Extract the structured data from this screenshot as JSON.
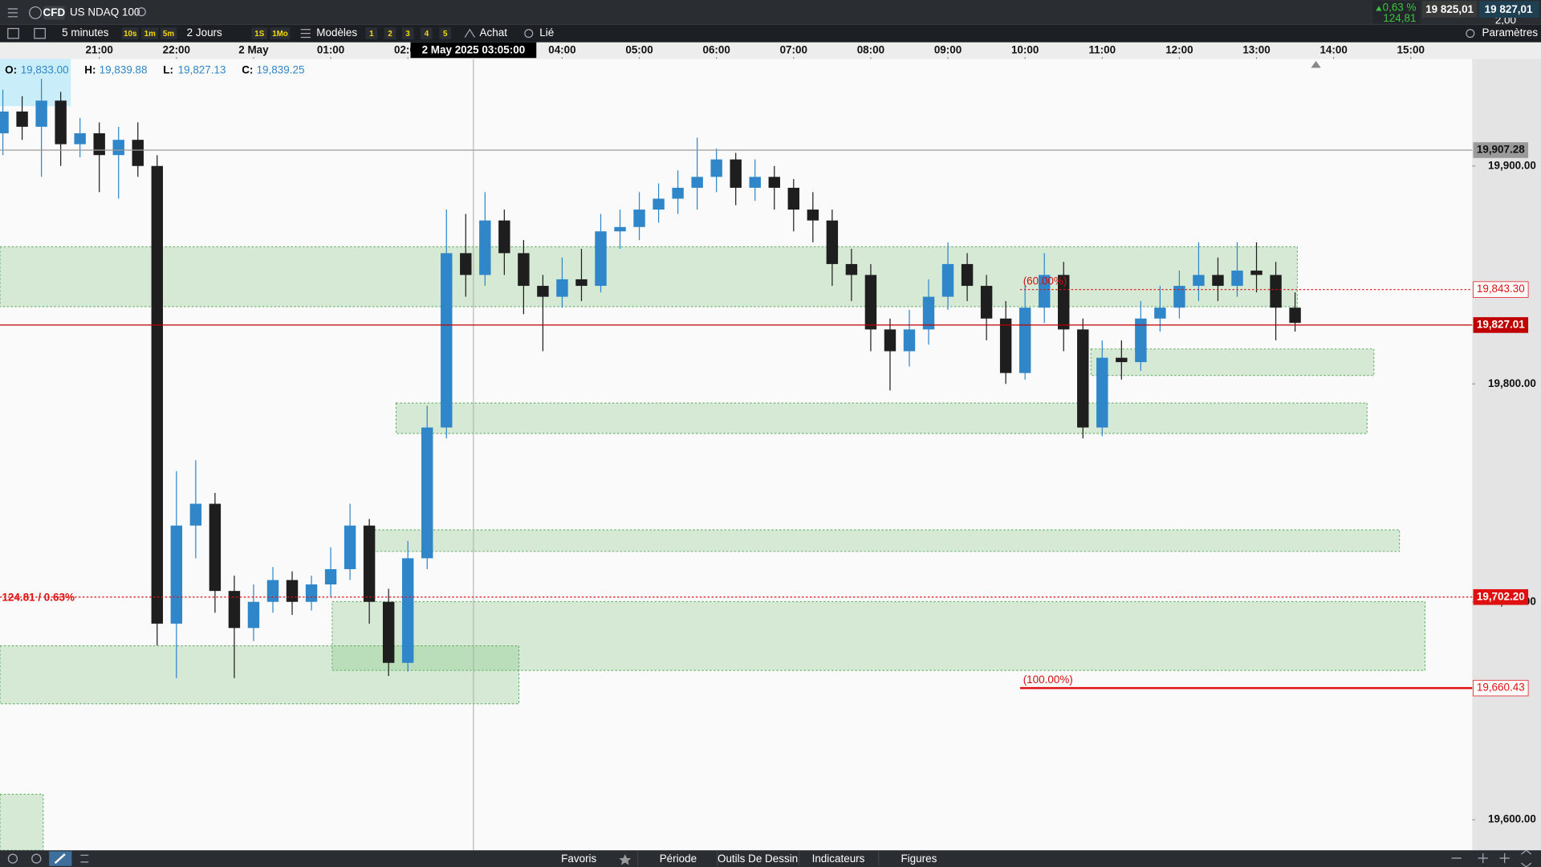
{
  "header": {
    "badge": "CFD",
    "instrument": "US NDAQ 100",
    "change_pct": "0,63 %",
    "change_abs": "124,81",
    "bid": "19 825,01",
    "spread": "2,00",
    "ask": "19 827,01"
  },
  "toolbar": {
    "period": "5 minutes",
    "quick_periods": [
      "10s",
      "1m",
      "5m"
    ],
    "range": "2 Jours",
    "quick_ranges": [
      "1S",
      "1Mo"
    ],
    "templates": "Modèles",
    "slots": [
      "1",
      "2",
      "3",
      "4",
      "5"
    ],
    "buy": "Achat",
    "link": "Lié",
    "settings": "Paramètres"
  },
  "readout": [
    {
      "key": "O:",
      "value": "19,833.00"
    },
    {
      "key": "H:",
      "value": "19,839.88"
    },
    {
      "key": "L:",
      "value": "19,827.13"
    },
    {
      "key": "C:",
      "value": "19,839.25"
    }
  ],
  "chart": {
    "type": "candlestick",
    "up_color": "#2f86c9",
    "down_color": "#1e1e1e",
    "xlim": [
      -1.287,
      17.796
    ],
    "ylim": [
      19586.0,
      19949.1
    ],
    "xticks": [
      {
        "value": 0,
        "label": "21:00"
      },
      {
        "value": 1,
        "label": "22:00"
      },
      {
        "value": 2,
        "label": "2 May"
      },
      {
        "value": 3,
        "label": "01:00"
      },
      {
        "value": 4,
        "label": "02:00"
      },
      {
        "value": 6,
        "label": "04:00"
      },
      {
        "value": 7,
        "label": "05:00"
      },
      {
        "value": 8,
        "label": "06:00"
      },
      {
        "value": 9,
        "label": "07:00"
      },
      {
        "value": 10,
        "label": "08:00"
      },
      {
        "value": 11,
        "label": "09:00"
      },
      {
        "value": 12,
        "label": "10:00"
      },
      {
        "value": 13,
        "label": "11:00"
      },
      {
        "value": 14,
        "label": "12:00"
      },
      {
        "value": 15,
        "label": "13:00"
      },
      {
        "value": 16,
        "label": "14:00"
      },
      {
        "value": 17,
        "label": "15:00"
      }
    ],
    "yticks": [
      {
        "value": 19600,
        "label": "19,600.00"
      },
      {
        "value": 19700,
        "label": "19,700.00"
      },
      {
        "value": 19800,
        "label": "19,800.00"
      },
      {
        "value": 19900,
        "label": "19,900.00"
      }
    ],
    "crosshair": {
      "value": 4.85,
      "label": "2 May 2025 03:05:00"
    },
    "levels": [
      {
        "value": 19907.28,
        "label": "19,907.28",
        "color": "#9a9a9a",
        "filled": true,
        "dash": false,
        "span": "full"
      },
      {
        "value": 19843.3,
        "label": "19,843.30",
        "color": "#e01010",
        "filled": false,
        "dash": true,
        "span": "fib",
        "note": "(60.00%)"
      },
      {
        "value": 19827.01,
        "label": "19,827.01",
        "color": "#c00000",
        "filled": true,
        "dash": false,
        "span": "full"
      },
      {
        "value": 19702.2,
        "label": "19,702.20",
        "color": "#e01010",
        "filled": true,
        "dash": true,
        "span": "full",
        "note": "124.81 / 0.63%"
      },
      {
        "value": 19660.43,
        "label": "19,660.43",
        "color": "#e01010",
        "filled": false,
        "dash": false,
        "span": "fib",
        "note": "(100.00%)"
      }
    ],
    "x": [
      -1.25,
      -1,
      -0.75,
      -0.5,
      -0.25,
      0,
      0.25,
      0.5,
      0.75,
      1,
      1.25,
      1.5,
      1.75,
      2,
      2.25,
      2.5,
      2.75,
      3,
      3.25,
      3.5,
      3.75,
      4,
      4.25,
      4.5,
      4.75,
      5,
      5.25,
      5.5,
      5.75,
      6,
      6.25,
      6.5,
      6.75,
      7,
      7.25,
      7.5,
      7.75,
      8,
      8.25,
      8.5,
      8.75,
      9,
      9.25,
      9.5,
      9.75,
      10,
      10.25,
      10.5,
      10.75,
      11,
      11.25,
      11.5,
      11.75,
      12,
      12.25,
      12.5,
      12.75,
      13,
      13.25,
      13.5,
      13.75,
      14,
      14.25,
      14.5,
      14.75,
      15,
      15.25,
      15.5
    ],
    "open": [
      19915,
      19925,
      19918,
      19930,
      19910,
      19915,
      19905,
      19912,
      19900,
      19690,
      19735,
      19745,
      19705,
      19688,
      19700,
      19710,
      19700,
      19708,
      19715,
      19735,
      19700,
      19672,
      19720,
      19780,
      19860,
      19850,
      19875,
      19860,
      19845,
      19840,
      19848,
      19845,
      19870,
      19872,
      19880,
      19885,
      19890,
      19895,
      19903,
      19890,
      19895,
      19890,
      19880,
      19875,
      19855,
      19850,
      19825,
      19815,
      19825,
      19840,
      19855,
      19845,
      19830,
      19805,
      19835,
      19850,
      19825,
      19780,
      19812,
      19810,
      19830,
      19835,
      19845,
      19850,
      19845,
      19852,
      19850,
      19835
    ],
    "high": [
      19935,
      19932,
      19940,
      19934,
      19922,
      19920,
      19918,
      19920,
      19905,
      19760,
      19765,
      19750,
      19712,
      19708,
      19716,
      19714,
      19712,
      19725,
      19745,
      19738,
      19706,
      19728,
      19790,
      19880,
      19878,
      19888,
      19880,
      19866,
      19850,
      19858,
      19862,
      19878,
      19880,
      19888,
      19892,
      19898,
      19913,
      19908,
      19906,
      19903,
      19900,
      19894,
      19888,
      19880,
      19862,
      19855,
      19830,
      19834,
      19848,
      19865,
      19860,
      19850,
      19838,
      19845,
      19860,
      19856,
      19830,
      19820,
      19820,
      19838,
      19845,
      19852,
      19865,
      19858,
      19865,
      19865,
      19856,
      19842
    ],
    "low": [
      19905,
      19912,
      19895,
      19900,
      19904,
      19888,
      19885,
      19895,
      19680,
      19665,
      19720,
      19695,
      19665,
      19682,
      19695,
      19694,
      19696,
      19702,
      19710,
      19690,
      19666,
      19668,
      19715,
      19775,
      19840,
      19845,
      19850,
      19832,
      19815,
      19835,
      19838,
      19842,
      19862,
      19866,
      19874,
      19878,
      19880,
      19888,
      19882,
      19884,
      19880,
      19870,
      19865,
      19845,
      19838,
      19815,
      19797,
      19808,
      19818,
      19834,
      19838,
      19820,
      19800,
      19802,
      19828,
      19815,
      19775,
      19776,
      19802,
      19806,
      19824,
      19830,
      19838,
      19838,
      19840,
      19842,
      19820,
      19824
    ],
    "close": [
      19925,
      19918,
      19930,
      19910,
      19915,
      19905,
      19912,
      19900,
      19690,
      19735,
      19745,
      19705,
      19688,
      19700,
      19710,
      19700,
      19708,
      19715,
      19735,
      19700,
      19672,
      19720,
      19780,
      19860,
      19850,
      19875,
      19860,
      19845,
      19840,
      19848,
      19845,
      19870,
      19872,
      19880,
      19885,
      19890,
      19895,
      19903,
      19890,
      19895,
      19890,
      19880,
      19875,
      19855,
      19850,
      19825,
      19815,
      19825,
      19840,
      19855,
      19845,
      19830,
      19805,
      19835,
      19850,
      19825,
      19780,
      19812,
      19810,
      19830,
      19835,
      19845,
      19850,
      19845,
      19852,
      19850,
      19835,
      19828
    ]
  },
  "footer": {
    "tabs": [
      "Favoris",
      "Période",
      "Outils De Dessin",
      "Indicateurs",
      "Figures"
    ]
  }
}
